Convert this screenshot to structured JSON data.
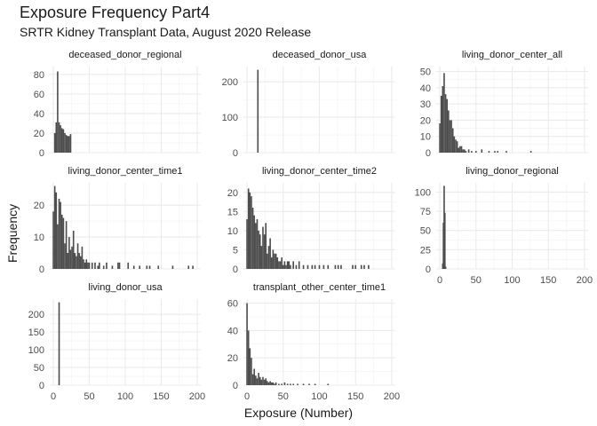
{
  "title": "Exposure Frequency Part4",
  "subtitle": "SRTR Kidney Transplant Data, August 2020 Release",
  "chart_data": {
    "type": "bar",
    "title": "Exposure Frequency Part4",
    "subtitle": "SRTR Kidney Transplant Data, August 2020 Release",
    "xlabel": "Exposure (Number)",
    "ylabel": "Frequency",
    "grid": true,
    "bar_color": "#4d4d4d",
    "xlim": [
      -5,
      205
    ],
    "xticks": [
      0,
      50,
      100,
      150,
      200
    ],
    "bin_width": 2,
    "panels": [
      {
        "name": "deceased_donor_regional",
        "yticks": [
          0,
          20,
          40,
          60,
          80
        ],
        "ylim": [
          0,
          88
        ],
        "bins": [
          {
            "x": 2,
            "y": 20
          },
          {
            "x": 4,
            "y": 31
          },
          {
            "x": 6,
            "y": 83
          },
          {
            "x": 8,
            "y": 31
          },
          {
            "x": 10,
            "y": 28
          },
          {
            "x": 12,
            "y": 25
          },
          {
            "x": 14,
            "y": 24
          },
          {
            "x": 16,
            "y": 20
          },
          {
            "x": 18,
            "y": 18
          },
          {
            "x": 20,
            "y": 17
          },
          {
            "x": 22,
            "y": 17
          },
          {
            "x": 24,
            "y": 19
          }
        ]
      },
      {
        "name": "deceased_donor_usa",
        "yticks": [
          0,
          100,
          200
        ],
        "ylim": [
          0,
          243
        ],
        "bins": [
          {
            "x": 15,
            "y": 234
          }
        ]
      },
      {
        "name": "living_donor_center_all",
        "yticks": [
          0,
          10,
          20,
          30,
          40,
          50
        ],
        "ylim": [
          0,
          53
        ],
        "bins": [
          {
            "x": 0,
            "y": 18
          },
          {
            "x": 2,
            "y": 35
          },
          {
            "x": 4,
            "y": 41
          },
          {
            "x": 6,
            "y": 49
          },
          {
            "x": 8,
            "y": 36
          },
          {
            "x": 10,
            "y": 33
          },
          {
            "x": 12,
            "y": 26
          },
          {
            "x": 14,
            "y": 20
          },
          {
            "x": 16,
            "y": 20
          },
          {
            "x": 18,
            "y": 15
          },
          {
            "x": 20,
            "y": 10
          },
          {
            "x": 22,
            "y": 8
          },
          {
            "x": 24,
            "y": 7
          },
          {
            "x": 26,
            "y": 3
          },
          {
            "x": 28,
            "y": 4
          },
          {
            "x": 30,
            "y": 4
          },
          {
            "x": 32,
            "y": 2
          },
          {
            "x": 34,
            "y": 2
          },
          {
            "x": 36,
            "y": 1
          },
          {
            "x": 40,
            "y": 2
          },
          {
            "x": 44,
            "y": 1
          },
          {
            "x": 50,
            "y": 1
          },
          {
            "x": 58,
            "y": 2
          },
          {
            "x": 68,
            "y": 1
          },
          {
            "x": 76,
            "y": 1
          },
          {
            "x": 80,
            "y": 1
          },
          {
            "x": 92,
            "y": 1
          },
          {
            "x": 126,
            "y": 1
          }
        ]
      },
      {
        "name": "living_donor_center_time1",
        "yticks": [
          0,
          10,
          20
        ],
        "ylim": [
          0,
          27
        ],
        "bins": [
          {
            "x": 0,
            "y": 18
          },
          {
            "x": 2,
            "y": 26
          },
          {
            "x": 4,
            "y": 24
          },
          {
            "x": 6,
            "y": 14
          },
          {
            "x": 8,
            "y": 22
          },
          {
            "x": 10,
            "y": 21
          },
          {
            "x": 12,
            "y": 17
          },
          {
            "x": 14,
            "y": 16
          },
          {
            "x": 16,
            "y": 8
          },
          {
            "x": 18,
            "y": 15
          },
          {
            "x": 20,
            "y": 5
          },
          {
            "x": 22,
            "y": 10
          },
          {
            "x": 24,
            "y": 6
          },
          {
            "x": 26,
            "y": 7
          },
          {
            "x": 28,
            "y": 12
          },
          {
            "x": 30,
            "y": 5
          },
          {
            "x": 32,
            "y": 4
          },
          {
            "x": 34,
            "y": 8
          },
          {
            "x": 36,
            "y": 5
          },
          {
            "x": 38,
            "y": 4
          },
          {
            "x": 40,
            "y": 7
          },
          {
            "x": 42,
            "y": 3
          },
          {
            "x": 44,
            "y": 2
          },
          {
            "x": 46,
            "y": 3
          },
          {
            "x": 48,
            "y": 2
          },
          {
            "x": 50,
            "y": 2
          },
          {
            "x": 54,
            "y": 2
          },
          {
            "x": 58,
            "y": 2
          },
          {
            "x": 62,
            "y": 1
          },
          {
            "x": 64,
            "y": 2
          },
          {
            "x": 70,
            "y": 1
          },
          {
            "x": 74,
            "y": 2
          },
          {
            "x": 82,
            "y": 1
          },
          {
            "x": 90,
            "y": 2
          },
          {
            "x": 92,
            "y": 2
          },
          {
            "x": 104,
            "y": 2
          },
          {
            "x": 112,
            "y": 1
          },
          {
            "x": 120,
            "y": 1
          },
          {
            "x": 130,
            "y": 1
          },
          {
            "x": 134,
            "y": 1
          },
          {
            "x": 146,
            "y": 1
          },
          {
            "x": 166,
            "y": 1
          },
          {
            "x": 188,
            "y": 1
          },
          {
            "x": 194,
            "y": 1
          }
        ]
      },
      {
        "name": "living_donor_center_time2",
        "yticks": [
          0,
          5,
          10,
          15,
          20
        ],
        "ylim": [
          0,
          22.5
        ],
        "bins": [
          {
            "x": 0,
            "y": 13
          },
          {
            "x": 2,
            "y": 21
          },
          {
            "x": 4,
            "y": 20
          },
          {
            "x": 6,
            "y": 19
          },
          {
            "x": 8,
            "y": 16
          },
          {
            "x": 10,
            "y": 14
          },
          {
            "x": 12,
            "y": 12
          },
          {
            "x": 14,
            "y": 13
          },
          {
            "x": 16,
            "y": 10
          },
          {
            "x": 18,
            "y": 9
          },
          {
            "x": 20,
            "y": 6
          },
          {
            "x": 22,
            "y": 11
          },
          {
            "x": 24,
            "y": 9
          },
          {
            "x": 26,
            "y": 12
          },
          {
            "x": 28,
            "y": 4
          },
          {
            "x": 30,
            "y": 6
          },
          {
            "x": 32,
            "y": 8
          },
          {
            "x": 34,
            "y": 3
          },
          {
            "x": 36,
            "y": 5
          },
          {
            "x": 38,
            "y": 4
          },
          {
            "x": 40,
            "y": 4
          },
          {
            "x": 42,
            "y": 3
          },
          {
            "x": 44,
            "y": 2
          },
          {
            "x": 46,
            "y": 2
          },
          {
            "x": 48,
            "y": 3
          },
          {
            "x": 50,
            "y": 1
          },
          {
            "x": 52,
            "y": 2
          },
          {
            "x": 54,
            "y": 1
          },
          {
            "x": 56,
            "y": 2
          },
          {
            "x": 58,
            "y": 2
          },
          {
            "x": 60,
            "y": 1
          },
          {
            "x": 64,
            "y": 2
          },
          {
            "x": 68,
            "y": 1
          },
          {
            "x": 72,
            "y": 2
          },
          {
            "x": 78,
            "y": 1
          },
          {
            "x": 84,
            "y": 1
          },
          {
            "x": 90,
            "y": 1
          },
          {
            "x": 94,
            "y": 1
          },
          {
            "x": 100,
            "y": 1
          },
          {
            "x": 106,
            "y": 1
          },
          {
            "x": 112,
            "y": 1
          },
          {
            "x": 122,
            "y": 1
          },
          {
            "x": 126,
            "y": 1
          },
          {
            "x": 130,
            "y": 1
          },
          {
            "x": 146,
            "y": 1
          },
          {
            "x": 150,
            "y": 1
          },
          {
            "x": 158,
            "y": 1
          },
          {
            "x": 162,
            "y": 1
          },
          {
            "x": 168,
            "y": 1
          }
        ]
      },
      {
        "name": "living_donor_regional",
        "yticks": [
          0,
          25,
          50,
          75,
          100
        ],
        "ylim": [
          0,
          112
        ],
        "bins": [
          {
            "x": 4,
            "y": 7
          },
          {
            "x": 5,
            "y": 60
          },
          {
            "x": 6,
            "y": 108
          },
          {
            "x": 7,
            "y": 73
          },
          {
            "x": 8,
            "y": 3
          }
        ]
      },
      {
        "name": "living_donor_usa",
        "yticks": [
          0,
          50,
          100,
          150,
          200
        ],
        "ylim": [
          0,
          243
        ],
        "bins": [
          {
            "x": 8,
            "y": 234
          }
        ]
      },
      {
        "name": "transplant_other_center_time1",
        "yticks": [
          0,
          20,
          40,
          60
        ],
        "ylim": [
          0,
          63
        ],
        "bins": [
          {
            "x": 0,
            "y": 60
          },
          {
            "x": 2,
            "y": 40
          },
          {
            "x": 4,
            "y": 27
          },
          {
            "x": 6,
            "y": 20
          },
          {
            "x": 8,
            "y": 8
          },
          {
            "x": 10,
            "y": 12
          },
          {
            "x": 12,
            "y": 7
          },
          {
            "x": 14,
            "y": 5
          },
          {
            "x": 16,
            "y": 9
          },
          {
            "x": 18,
            "y": 6
          },
          {
            "x": 20,
            "y": 4
          },
          {
            "x": 22,
            "y": 6
          },
          {
            "x": 24,
            "y": 4
          },
          {
            "x": 26,
            "y": 5
          },
          {
            "x": 28,
            "y": 3
          },
          {
            "x": 30,
            "y": 2
          },
          {
            "x": 32,
            "y": 3
          },
          {
            "x": 34,
            "y": 2
          },
          {
            "x": 36,
            "y": 2
          },
          {
            "x": 38,
            "y": 1
          },
          {
            "x": 40,
            "y": 2
          },
          {
            "x": 44,
            "y": 1
          },
          {
            "x": 48,
            "y": 1
          },
          {
            "x": 52,
            "y": 2
          },
          {
            "x": 56,
            "y": 1
          },
          {
            "x": 60,
            "y": 1
          },
          {
            "x": 64,
            "y": 1
          },
          {
            "x": 70,
            "y": 1
          },
          {
            "x": 78,
            "y": 1
          },
          {
            "x": 86,
            "y": 1
          },
          {
            "x": 94,
            "y": 1
          },
          {
            "x": 112,
            "y": 1
          }
        ]
      }
    ]
  }
}
